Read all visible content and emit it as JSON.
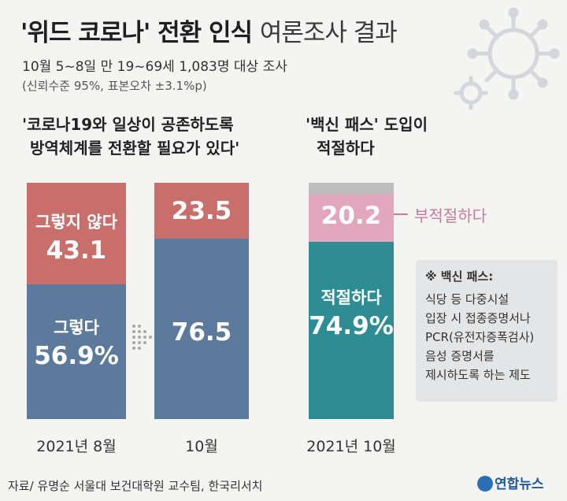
{
  "title": {
    "main": "'위드 코로나' 전환 인식",
    "rest": "여론조사 결과"
  },
  "subtitle": {
    "line1": "10월 5~8일 만 19~69세 1,083명 대상 조사",
    "line2": "(신뢰수준 95%, 표본오차 ±3.1%p)"
  },
  "question1": {
    "line1": "'코로나19와 일상이 공존하도록",
    "line2": "방역체계를 전환할 필요가 있다'"
  },
  "question2": {
    "line1": "'백신 패스' 도입이",
    "line2": "적절하다"
  },
  "note": {
    "title": "※ 백신 패스:",
    "lines": [
      "식당 등 다중시설",
      "입장 시 접종증명서나",
      "PCR(유전자증폭검사)",
      "음성 증명서를",
      "제시하도록 하는 제도"
    ]
  },
  "source": "자료/ 유명순 서울대 보건대학원 교수팀, 한국리서치",
  "logo": "연합뉴스",
  "colors": {
    "yes_blue": "#5c7b9c",
    "no_red": "#c96f6b",
    "pass_teal": "#2e8d94",
    "pass_pink": "#e2a6bd",
    "pass_gray": "#bdbdbd"
  },
  "chart_data": [
    {
      "type": "bar",
      "stacked": true,
      "categories": [
        "2021년 8월",
        "10월"
      ],
      "series": [
        {
          "name": "그렇다",
          "values": [
            56.9,
            76.5
          ]
        },
        {
          "name": "그렇지 않다",
          "values": [
            43.1,
            23.5
          ]
        }
      ],
      "labels": {
        "aug_no": {
          "name": "그렇지 않다",
          "value": "43.1"
        },
        "aug_yes": {
          "name": "그렇다",
          "value": "56.9%"
        },
        "oct_no": "23.5",
        "oct_yes": "76.5"
      },
      "ylim": [
        0,
        100
      ]
    },
    {
      "type": "bar",
      "stacked": true,
      "categories": [
        "2021년 10월"
      ],
      "series": [
        {
          "name": "적절하다",
          "values": [
            74.9
          ]
        },
        {
          "name": "부적절하다",
          "values": [
            20.2
          ]
        },
        {
          "name": "",
          "values": [
            4.9
          ]
        }
      ],
      "labels": {
        "yes": {
          "name": "적절하다",
          "value": "74.9%"
        },
        "no": "20.2",
        "no_name": "부적절하다"
      },
      "ylim": [
        0,
        100
      ]
    }
  ]
}
